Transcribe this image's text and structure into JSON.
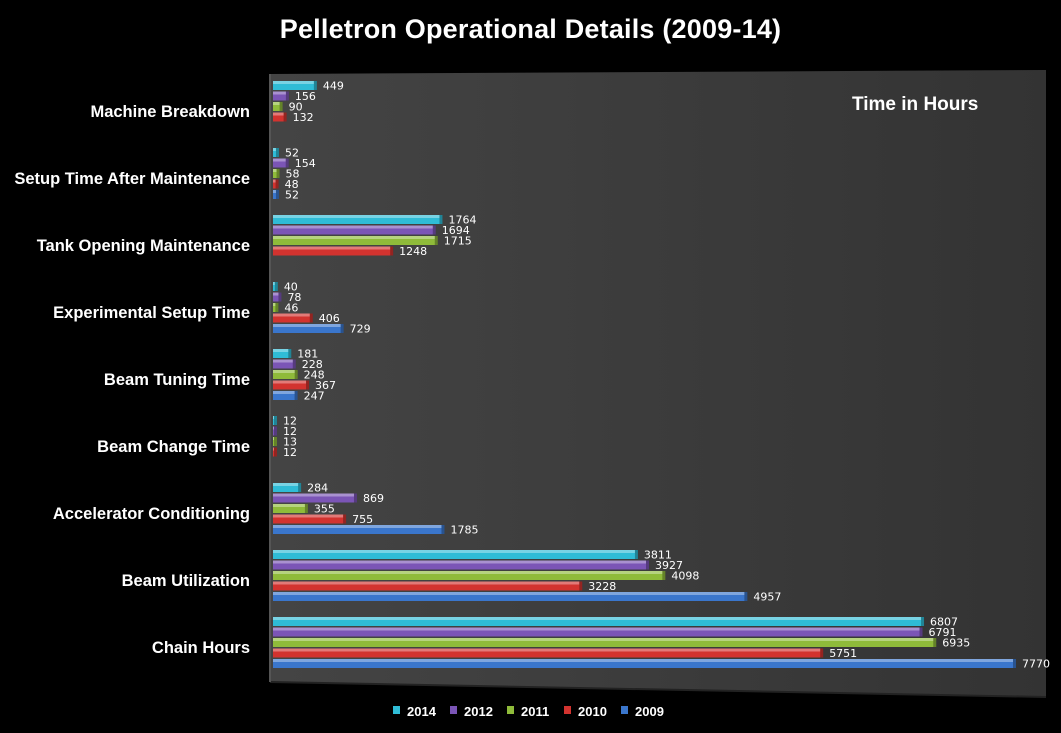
{
  "chart_data": {
    "type": "bar",
    "orientation": "horizontal",
    "title": "Pelletron Operational Details (2009-14)",
    "annotation": "Time in Hours",
    "categories": [
      "Machine Breakdown",
      "Setup Time After Maintenance",
      "Tank Opening Maintenance",
      "Experimental Setup Time",
      "Beam Tuning Time",
      "Beam Change Time",
      "Accelerator Conditioning",
      "Beam Utilization",
      "Chain Hours"
    ],
    "series": [
      {
        "name": "2014",
        "color": "#2fbcd6",
        "values": [
          449,
          52,
          1764,
          40,
          181,
          12,
          284,
          3811,
          6807
        ]
      },
      {
        "name": "2012",
        "color": "#7b55b6",
        "values": [
          156,
          154,
          1694,
          78,
          228,
          12,
          869,
          3927,
          6791
        ]
      },
      {
        "name": "2011",
        "color": "#8fbb3a",
        "values": [
          90,
          58,
          1715,
          46,
          248,
          13,
          355,
          4098,
          6935
        ]
      },
      {
        "name": "2010",
        "color": "#d2332f",
        "values": [
          132,
          48,
          1248,
          406,
          367,
          12,
          755,
          3228,
          5751
        ]
      },
      {
        "name": "2009",
        "color": "#3a76cc",
        "values": [
          null,
          52,
          null,
          729,
          247,
          null,
          1785,
          4957,
          7770
        ]
      }
    ],
    "xlim": [
      0,
      7900
    ],
    "grid": false,
    "legend": "bottom",
    "plot_background": "#3c3c3c"
  }
}
